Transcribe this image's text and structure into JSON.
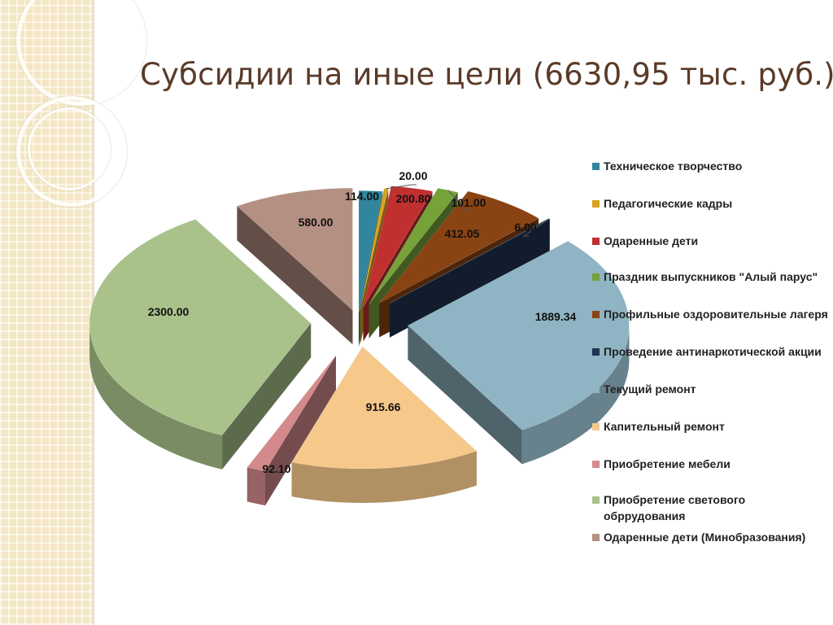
{
  "title": "Субсидии на иные цели (6630,95 тыс. руб.)",
  "chart_data": {
    "type": "pie",
    "style": "3d-exploded",
    "legend_position": "right",
    "categories": [
      "Техническое творчество",
      "Педагогические кадры",
      "Одаренные дети",
      "Праздник выпускников \"Алый парус\"",
      "Профильные оздоровительные лагеря",
      "Проведение антинаркотической акции",
      "Текущий ремонт",
      "Капительный ремонт",
      "Приобретение мебели",
      "Приобретение светового обррудования",
      "Одаренные дети (Минобразования)"
    ],
    "values": [
      114.0,
      20.0,
      200.8,
      101.0,
      412.05,
      6.0,
      1889.34,
      915.66,
      92.1,
      2300.0,
      580.0
    ],
    "data_labels": [
      "114.00",
      "20.00",
      "200.80",
      "101.00",
      "412.05",
      "6.00",
      "1889.34",
      "915.66",
      "92.10",
      "2300.00",
      "580.00"
    ],
    "colors": [
      "#31859c",
      "#d8a21b",
      "#c0302f",
      "#76a23a",
      "#8a4312",
      "#1f3550",
      "#8fb4c3",
      "#f6c88a",
      "#d48a8c",
      "#a8c28a",
      "#b49082"
    ]
  }
}
